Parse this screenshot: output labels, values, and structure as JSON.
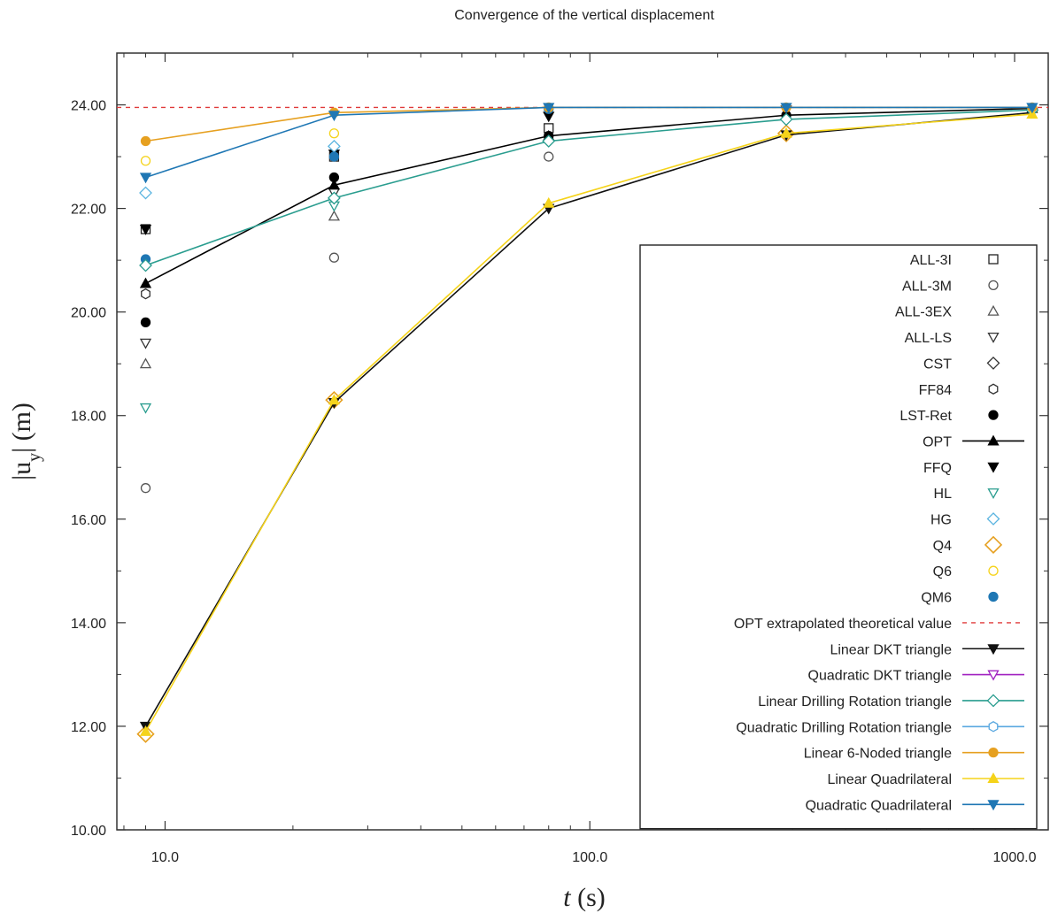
{
  "chart_data": {
    "type": "line",
    "title": "Convergence of the vertical displacement",
    "xlabel": "t (s)",
    "ylabel": "|u_y| (m)",
    "x_scale": "log",
    "xlim": [
      7.7,
      1200
    ],
    "ylim": [
      10,
      25
    ],
    "x_ticks": [
      10,
      100,
      1000
    ],
    "x_tick_labels": [
      "10.0",
      "100.0",
      "1000.0"
    ],
    "y_ticks": [
      10,
      12,
      14,
      16,
      18,
      20,
      22,
      24
    ],
    "y_tick_labels": [
      "10.00",
      "12.00",
      "14.00",
      "16.00",
      "18.00",
      "20.00",
      "22.00",
      "24.00"
    ],
    "grid": false,
    "legend_position": "right",
    "reference_line": {
      "name": "OPT extrapolated theoretical value",
      "value": 23.95,
      "color": "#e03a3a",
      "style": "dashed"
    },
    "series": [
      {
        "name": "ALL-3I",
        "marker": "square",
        "fill": false,
        "color": "#222222",
        "line": false,
        "x": [
          9,
          25,
          80
        ],
        "values": [
          21.6,
          23.0,
          23.55
        ]
      },
      {
        "name": "ALL-3M",
        "marker": "circle",
        "fill": false,
        "color": "#555555",
        "line": false,
        "x": [
          9,
          25,
          80
        ],
        "values": [
          16.6,
          21.05,
          23.0
        ]
      },
      {
        "name": "ALL-3EX",
        "marker": "triangle-up",
        "fill": false,
        "color": "#555555",
        "line": false,
        "x": [
          9,
          25
        ],
        "values": [
          19.0,
          21.85
        ]
      },
      {
        "name": "ALL-LS",
        "marker": "triangle-down",
        "fill": false,
        "color": "#333333",
        "line": false,
        "x": [
          9,
          25
        ],
        "values": [
          19.4,
          22.3
        ]
      },
      {
        "name": "CST",
        "marker": "diamond",
        "fill": false,
        "color": "#333333",
        "line": false,
        "x": [],
        "values": []
      },
      {
        "name": "FF84",
        "marker": "hexagon",
        "fill": false,
        "color": "#333333",
        "line": false,
        "x": [
          9
        ],
        "values": [
          20.35
        ]
      },
      {
        "name": "LST-Ret",
        "marker": "circle",
        "fill": true,
        "color": "#000000",
        "line": false,
        "x": [
          9,
          25,
          80,
          290
        ],
        "values": [
          19.8,
          22.6,
          23.4,
          23.8
        ]
      },
      {
        "name": "OPT",
        "marker": "triangle-up",
        "fill": true,
        "color": "#000000",
        "line": true,
        "x": [
          9,
          25,
          80,
          290,
          1100
        ],
        "values": [
          20.55,
          22.45,
          23.4,
          23.8,
          23.93
        ]
      },
      {
        "name": "FFQ",
        "marker": "triangle-down",
        "fill": true,
        "color": "#000000",
        "line": false,
        "x": [
          9,
          25,
          80,
          290
        ],
        "values": [
          21.6,
          23.05,
          23.78,
          23.9
        ]
      },
      {
        "name": "HL",
        "marker": "triangle-down",
        "fill": false,
        "color": "#2a9d8f",
        "line": false,
        "x": [
          9,
          25
        ],
        "values": [
          18.15,
          22.05
        ]
      },
      {
        "name": "HG",
        "marker": "diamond",
        "fill": false,
        "color": "#5ab4e0",
        "line": false,
        "x": [
          9,
          25
        ],
        "values": [
          22.3,
          23.2
        ]
      },
      {
        "name": "Q4",
        "marker": "diamond-large",
        "fill": false,
        "color": "#e6a020",
        "line": false,
        "x": [
          9,
          25,
          290
        ],
        "values": [
          11.85,
          18.3,
          23.45
        ]
      },
      {
        "name": "Q6",
        "marker": "circle",
        "fill": false,
        "color": "#f5d31a",
        "line": false,
        "x": [
          9,
          25
        ],
        "values": [
          22.92,
          23.45
        ]
      },
      {
        "name": "QM6",
        "marker": "circle",
        "fill": true,
        "color": "#1f77b4",
        "line": false,
        "x": [
          9,
          25,
          80
        ],
        "values": [
          21.02,
          23.0,
          23.92
        ]
      },
      {
        "name": "Linear DKT triangle",
        "marker": "triangle-down",
        "fill": true,
        "color": "#111111",
        "line": true,
        "x": [
          9,
          25,
          80,
          290,
          1100
        ],
        "values": [
          12.0,
          18.25,
          22.0,
          23.42,
          23.85
        ]
      },
      {
        "name": "Quadratic DKT triangle",
        "marker": "triangle-down",
        "fill": false,
        "color": "#a020c0",
        "line": true,
        "x": [],
        "values": []
      },
      {
        "name": "Linear Drilling Rotation triangle",
        "marker": "diamond",
        "fill": false,
        "color": "#2a9d8f",
        "line": true,
        "x": [
          9,
          25,
          80,
          290,
          1100
        ],
        "values": [
          20.9,
          22.2,
          23.3,
          23.72,
          23.9
        ]
      },
      {
        "name": "Quadratic Drilling Rotation triangle",
        "marker": "hexagon",
        "fill": false,
        "color": "#5aa8e0",
        "line": true,
        "x": [],
        "values": []
      },
      {
        "name": "Linear 6-Noded triangle",
        "marker": "circle",
        "fill": true,
        "color": "#e6a020",
        "line": true,
        "x": [
          9,
          25,
          80,
          290,
          1100
        ],
        "values": [
          23.3,
          23.85,
          23.95,
          23.95,
          23.95
        ]
      },
      {
        "name": "Linear Quadrilateral",
        "marker": "triangle-up",
        "fill": true,
        "color": "#f5d31a",
        "line": true,
        "x": [
          9,
          25,
          80,
          290,
          1100
        ],
        "values": [
          11.9,
          18.3,
          22.1,
          23.45,
          23.82
        ]
      },
      {
        "name": "Quadratic Quadrilateral",
        "marker": "triangle-down",
        "fill": true,
        "color": "#1f77b4",
        "line": true,
        "x": [
          9,
          25,
          80,
          290,
          1100
        ],
        "values": [
          22.6,
          23.8,
          23.95,
          23.95,
          23.95
        ]
      }
    ]
  }
}
